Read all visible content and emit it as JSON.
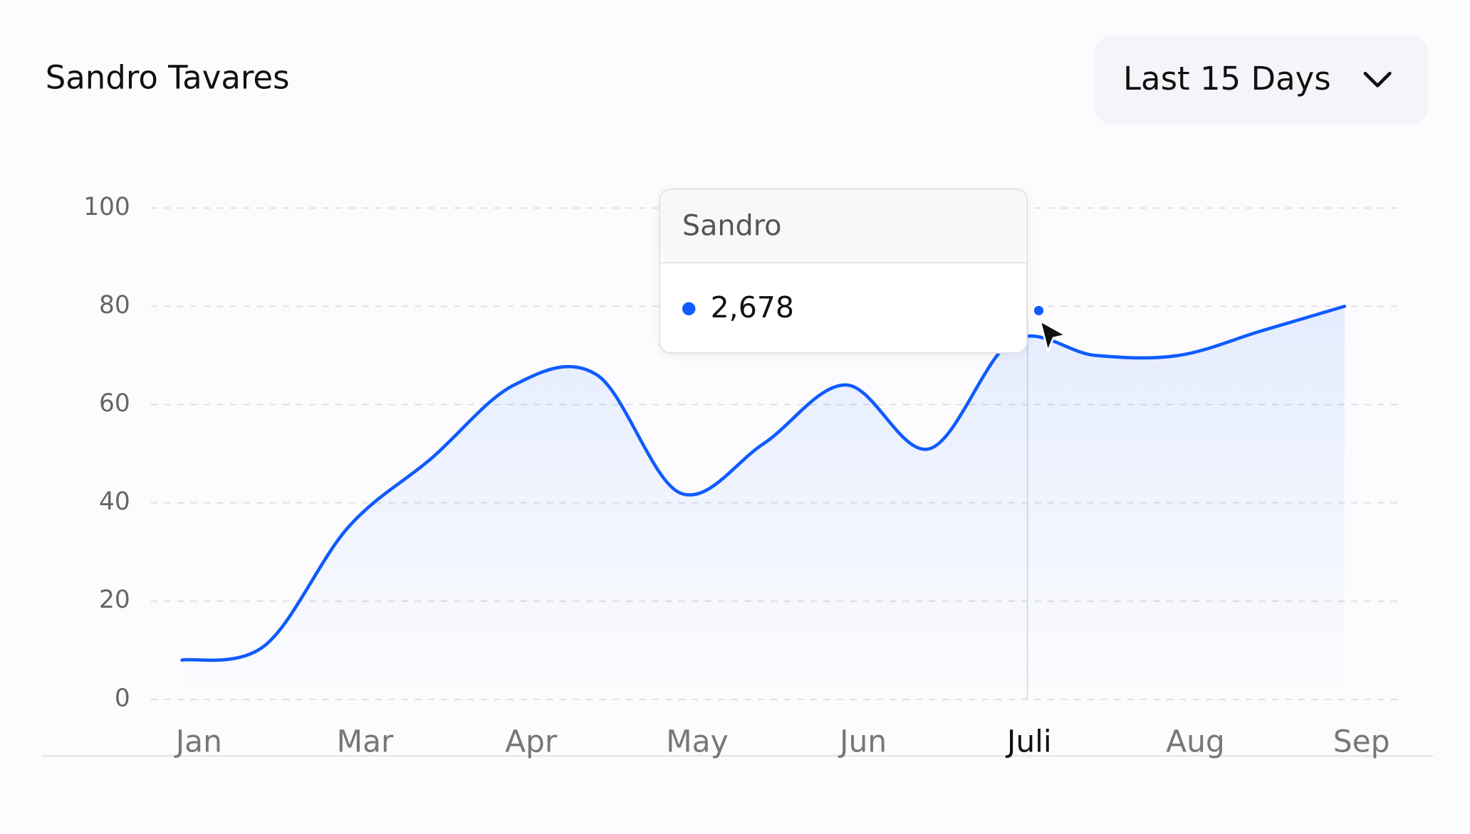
{
  "chart_data": {
    "type": "line",
    "title": "Sandro Tavares",
    "range_selector": "Last 15 Days",
    "categories": [
      "Jan",
      null,
      "Mar",
      null,
      "Apr",
      null,
      "May",
      null,
      "Jun",
      null,
      "Juli",
      null,
      "Aug",
      null,
      "Sep"
    ],
    "series": [
      {
        "name": "Sandro",
        "color": "#0f5bff",
        "values": [
          8,
          11,
          35,
          49,
          64,
          66,
          42,
          52,
          64,
          51,
          73,
          70,
          70,
          75,
          80
        ]
      }
    ],
    "ylim": [
      0,
      100
    ],
    "yticks": [
      0,
      20,
      40,
      60,
      80,
      100
    ],
    "grid": true,
    "highlight_index": 10,
    "tooltip": {
      "value": "2,678"
    }
  }
}
